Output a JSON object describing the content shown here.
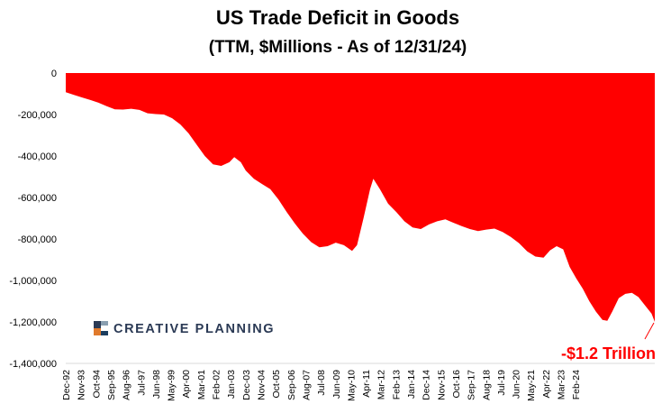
{
  "chart_data": {
    "type": "area",
    "title": "US Trade Deficit in Goods",
    "subtitle": "(TTM, $Millions - As of 12/31/24)",
    "xlabel": "",
    "ylabel": "",
    "ylim": [
      -1400000,
      0
    ],
    "grid": false,
    "fill_color": "#ff0000",
    "yticks": [
      0,
      -200000,
      -400000,
      -600000,
      -800000,
      -1000000,
      -1200000,
      -1400000
    ],
    "ytick_labels": [
      "0",
      "-200,000",
      "-400,000",
      "-600,000",
      "-800,000",
      "-1,000,000",
      "-1,200,000",
      "-1,400,000"
    ],
    "xtick_labels": [
      "Dec-92",
      "Nov-93",
      "Oct-94",
      "Sep-95",
      "Aug-96",
      "Jul-97",
      "Jun-98",
      "May-99",
      "Apr-00",
      "Mar-01",
      "Feb-02",
      "Jan-03",
      "Dec-03",
      "Nov-04",
      "Oct-05",
      "Sep-06",
      "Aug-07",
      "Jul-08",
      "Jun-09",
      "May-10",
      "Apr-11",
      "Mar-12",
      "Feb-13",
      "Jan-14",
      "Dec-14",
      "Nov-15",
      "Oct-16",
      "Sep-17",
      "Aug-18",
      "Jul-19",
      "Jun-20",
      "May-21",
      "Apr-22",
      "Mar-23",
      "Feb-24"
    ],
    "x_start": "Dec-92",
    "x_end": "Dec-24",
    "points": [
      [
        0,
        -92000
      ],
      [
        0.5,
        -105000
      ],
      [
        1,
        -118000
      ],
      [
        1.5,
        -130000
      ],
      [
        2,
        -143000
      ],
      [
        2.5,
        -160000
      ],
      [
        3,
        -175000
      ],
      [
        3.5,
        -176000
      ],
      [
        4,
        -172000
      ],
      [
        4.5,
        -178000
      ],
      [
        5,
        -194000
      ],
      [
        5.5,
        -198000
      ],
      [
        6,
        -200000
      ],
      [
        6.5,
        -218000
      ],
      [
        7,
        -248000
      ],
      [
        7.5,
        -290000
      ],
      [
        8,
        -345000
      ],
      [
        8.5,
        -400000
      ],
      [
        9,
        -440000
      ],
      [
        9.5,
        -448000
      ],
      [
        10,
        -430000
      ],
      [
        10.3,
        -405000
      ],
      [
        10.7,
        -430000
      ],
      [
        11,
        -470000
      ],
      [
        11.5,
        -510000
      ],
      [
        12,
        -535000
      ],
      [
        12.5,
        -560000
      ],
      [
        13,
        -610000
      ],
      [
        13.5,
        -670000
      ],
      [
        14,
        -725000
      ],
      [
        14.5,
        -775000
      ],
      [
        15,
        -815000
      ],
      [
        15.5,
        -840000
      ],
      [
        16,
        -835000
      ],
      [
        16.5,
        -818000
      ],
      [
        17,
        -830000
      ],
      [
        17.5,
        -858000
      ],
      [
        17.8,
        -830000
      ],
      [
        18.2,
        -700000
      ],
      [
        18.6,
        -560000
      ],
      [
        18.8,
        -510000
      ],
      [
        19.2,
        -560000
      ],
      [
        19.7,
        -630000
      ],
      [
        20.2,
        -670000
      ],
      [
        20.7,
        -715000
      ],
      [
        21.2,
        -745000
      ],
      [
        21.7,
        -752000
      ],
      [
        22.2,
        -730000
      ],
      [
        22.7,
        -715000
      ],
      [
        23.2,
        -705000
      ],
      [
        23.7,
        -722000
      ],
      [
        24.2,
        -738000
      ],
      [
        24.7,
        -752000
      ],
      [
        25.2,
        -762000
      ],
      [
        25.7,
        -755000
      ],
      [
        26.2,
        -750000
      ],
      [
        26.7,
        -766000
      ],
      [
        27.2,
        -790000
      ],
      [
        27.7,
        -820000
      ],
      [
        28.2,
        -860000
      ],
      [
        28.7,
        -885000
      ],
      [
        29.2,
        -890000
      ],
      [
        29.6,
        -855000
      ],
      [
        30,
        -835000
      ],
      [
        30.4,
        -850000
      ],
      [
        30.8,
        -935000
      ],
      [
        31.2,
        -990000
      ],
      [
        31.6,
        -1040000
      ],
      [
        32,
        -1100000
      ],
      [
        32.4,
        -1150000
      ],
      [
        32.8,
        -1190000
      ],
      [
        33.1,
        -1195000
      ],
      [
        33.4,
        -1150000
      ],
      [
        33.8,
        -1085000
      ],
      [
        34.2,
        -1065000
      ],
      [
        34.6,
        -1060000
      ],
      [
        35,
        -1080000
      ],
      [
        35.4,
        -1120000
      ],
      [
        35.8,
        -1160000
      ],
      [
        36,
        -1200000
      ]
    ],
    "annotation": {
      "text": "-$1.2 Trillion",
      "color": "#ff0000",
      "points_to_index": 35
    }
  },
  "logo": {
    "text": "CREATIVE PLANNING",
    "colors": [
      "#2b3a55",
      "#8a9fb0",
      "#e07a2c",
      "#1c3d5e"
    ]
  }
}
